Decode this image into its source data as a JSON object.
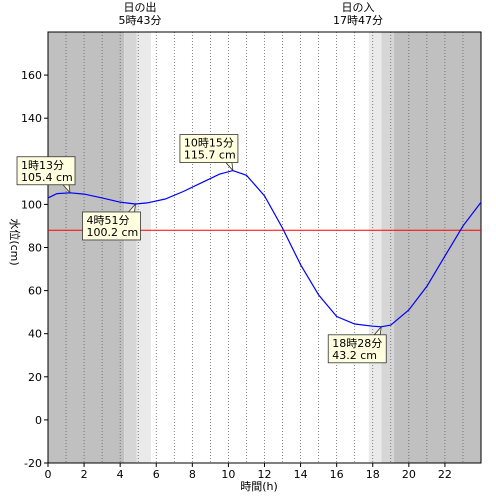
{
  "header": {
    "sunrise_label": "日の出",
    "sunrise_time": "5時43分",
    "sunset_label": "日の入",
    "sunset_time": "17時47分"
  },
  "colors": {
    "night": "#c0c0c0",
    "twilight_dark": "#d6d6d6",
    "twilight_light": "#eaeaea",
    "day": "#ffffff",
    "curve": "#0000ff",
    "reference_line": "#ff0000",
    "callout_fill": "#ffffe0"
  },
  "chart_data": {
    "type": "line",
    "xlabel": "時間(h)",
    "ylabel": "水位(cm)",
    "xlim": [
      0,
      24
    ],
    "ylim": [
      -20,
      180
    ],
    "x_ticks": [
      0,
      2,
      4,
      6,
      8,
      10,
      12,
      14,
      16,
      18,
      20,
      22
    ],
    "y_ticks": [
      -20,
      0,
      20,
      40,
      60,
      80,
      100,
      120,
      140,
      160
    ],
    "grid": "vertical dotted hourly",
    "reference_level": 88,
    "daylight": {
      "sunrise": 5.72,
      "sunset": 17.78
    },
    "series": [
      {
        "x": [
          0,
          0.5,
          1.22,
          2,
          3,
          4,
          4.85,
          5.5,
          6.5,
          7.5,
          8.5,
          9.5,
          10.25,
          11,
          12,
          13,
          14,
          15,
          16,
          17,
          18,
          18.47,
          19,
          20,
          21,
          22,
          23,
          24
        ],
        "values": [
          103,
          105,
          105.4,
          104.8,
          103,
          101,
          100.2,
          100.7,
          102.5,
          106,
          110,
          114,
          115.7,
          113.5,
          104,
          89,
          72,
          58,
          48,
          44.5,
          43.5,
          43.2,
          44,
          51,
          62,
          76,
          90,
          101
        ]
      }
    ],
    "annotations": [
      {
        "time": "1時13分",
        "value": "105.4 cm",
        "x": 1.22,
        "y": 105.4,
        "side": "upper-left"
      },
      {
        "time": "4時51分",
        "value": "100.2 cm",
        "x": 4.85,
        "y": 100.2,
        "side": "lower-left"
      },
      {
        "time": "10時15分",
        "value": "115.7 cm",
        "x": 10.25,
        "y": 115.7,
        "side": "upper-left"
      },
      {
        "time": "18時28分",
        "value": "43.2 cm",
        "x": 18.47,
        "y": 43.2,
        "side": "lower-left"
      }
    ]
  }
}
